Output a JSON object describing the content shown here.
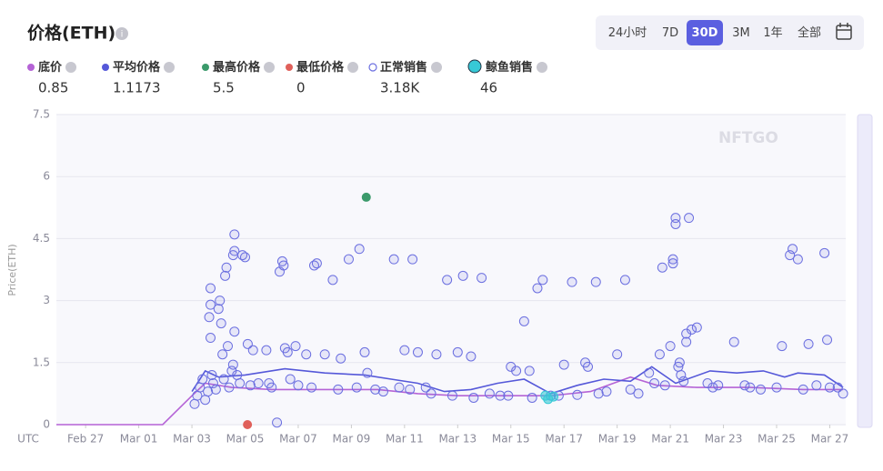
{
  "header": {
    "title": "价格(ETH)",
    "range_buttons": [
      "24小时",
      "7D",
      "30D",
      "3M",
      "1年",
      "全部"
    ],
    "active_range": "30D"
  },
  "chart_data": {
    "type": "scatter",
    "y_label": "Price(ETH)",
    "x_label": "UTC",
    "watermark": "NFTGO",
    "xlim": [
      -1.1,
      28.6
    ],
    "ylim": [
      0,
      7.5
    ],
    "yticks": [
      0,
      1.5,
      3,
      4.5,
      6,
      7.5
    ],
    "grid": true,
    "xticks": [
      {
        "value": 0,
        "label": "Feb 27"
      },
      {
        "value": 2,
        "label": "Mar 01"
      },
      {
        "value": 4,
        "label": "Mar 03"
      },
      {
        "value": 6,
        "label": "Mar 05"
      },
      {
        "value": 8,
        "label": "Mar 07"
      },
      {
        "value": 10,
        "label": "Mar 09"
      },
      {
        "value": 12,
        "label": "Mar 11"
      },
      {
        "value": 14,
        "label": "Mar 13"
      },
      {
        "value": 16,
        "label": "Mar 15"
      },
      {
        "value": 18,
        "label": "Mar 17"
      },
      {
        "value": 20,
        "label": "Mar 19"
      },
      {
        "value": 22,
        "label": "Mar 21"
      },
      {
        "value": 24,
        "label": "Mar 23"
      },
      {
        "value": 26,
        "label": "Mar 25"
      },
      {
        "value": 28,
        "label": "Mar 27"
      }
    ],
    "summary": [
      "0.85",
      "1.1173",
      "5.5",
      "0",
      "3.18K",
      "46"
    ],
    "series": [
      {
        "name": "底价",
        "type": "line",
        "color": "#b563d6",
        "x": [
          -1.1,
          2.9,
          4.0,
          4.5,
          5.5,
          7,
          9,
          11,
          12.5,
          14,
          16,
          17.5,
          19,
          20.5,
          21.5,
          23,
          25,
          27,
          28.5
        ],
        "values": [
          0,
          0,
          0.7,
          1.0,
          0.9,
          0.85,
          0.85,
          0.85,
          0.75,
          0.7,
          0.7,
          0.7,
          0.8,
          1.15,
          0.95,
          0.9,
          0.9,
          0.85,
          0.85
        ]
      },
      {
        "name": "平均价格",
        "type": "line",
        "color": "#5558d9",
        "x": [
          4.0,
          4.5,
          5.0,
          6,
          7.5,
          9,
          10.5,
          11.5,
          12.5,
          13.5,
          14.5,
          15.5,
          16.5,
          17.5,
          18.5,
          19.5,
          20.5,
          21.3,
          22.2,
          23.5,
          24.5,
          25.5,
          26.3,
          26.8,
          27.8,
          28.5
        ],
        "values": [
          0.8,
          1.3,
          1.15,
          1.2,
          1.35,
          1.25,
          1.2,
          1.1,
          1.0,
          0.8,
          0.85,
          1.0,
          1.1,
          0.75,
          0.95,
          1.1,
          1.05,
          1.4,
          1.0,
          1.3,
          1.25,
          1.3,
          1.15,
          1.25,
          1.2,
          0.9
        ]
      },
      {
        "name": "最高价格",
        "type": "point",
        "color": "#3b9a6b",
        "x": [
          10.56
        ],
        "values": [
          5.5
        ]
      },
      {
        "name": "最低价格",
        "type": "point",
        "color": "#e0605a",
        "x": [
          6.09
        ],
        "values": [
          0
        ]
      },
      {
        "name": "正常销售",
        "type": "scatter",
        "color": "#6b6fe0",
        "x": [
          4.1,
          4.2,
          4.3,
          4.4,
          4.5,
          4.6,
          4.7,
          4.7,
          4.65,
          4.7,
          4.75,
          4.8,
          4.9,
          5.0,
          5.05,
          5.1,
          5.15,
          5.2,
          5.3,
          5.25,
          5.35,
          5.4,
          5.5,
          5.55,
          5.6,
          5.6,
          5.55,
          5.6,
          5.7,
          5.8,
          5.9,
          6.0,
          6.1,
          6.3,
          6.5,
          6.8,
          7.0,
          7.2,
          7.3,
          7.4,
          7.45,
          7.5,
          7.6,
          7.7,
          7.9,
          8.0,
          8.3,
          8.6,
          8.7,
          9.0,
          9.3,
          9.6,
          9.9,
          10.3,
          10.5,
          10.6,
          10.9,
          11.6,
          11.8,
          12.0,
          12.3,
          12.5,
          12.8,
          13.2,
          13.6,
          14.0,
          14.2,
          14.5,
          14.9,
          15.2,
          15.6,
          16.0,
          16.2,
          16.5,
          16.7,
          17.0,
          17.2,
          17.5,
          18.0,
          18.3,
          18.8,
          18.9,
          19.2,
          19.6,
          20.0,
          20.3,
          20.8,
          21.2,
          21.4,
          21.6,
          21.7,
          22.0,
          22.1,
          22.1,
          22.2,
          22.2,
          22.4,
          22.5,
          22.6,
          22.6,
          22.7,
          22.8,
          23.0,
          23.4,
          23.8,
          24.4,
          25.0,
          25.4,
          26.2,
          26.5,
          26.6,
          26.8,
          27.2,
          27.5,
          27.8,
          27.9,
          28.3,
          28.5,
          6.2,
          6.9,
          8.5,
          9.5,
          10.2,
          11.2,
          12.2,
          13.0,
          13.8,
          14.6,
          15.9,
          16.8,
          17.8,
          18.5,
          19.3,
          20.5,
          21.8,
          22.3,
          22.35,
          23.6,
          24.8,
          26.0,
          27.0,
          28.0
        ],
        "values": [
          0.5,
          0.7,
          0.9,
          1.1,
          0.6,
          0.8,
          3.3,
          2.9,
          2.6,
          2.1,
          1.2,
          1.0,
          0.85,
          2.8,
          3.0,
          2.45,
          1.7,
          1.1,
          3.8,
          3.6,
          1.9,
          0.9,
          1.3,
          1.45,
          4.6,
          4.2,
          4.1,
          2.25,
          1.2,
          1.0,
          4.1,
          4.05,
          1.95,
          1.8,
          1.0,
          1.8,
          0.9,
          0.05,
          3.7,
          3.95,
          3.85,
          1.85,
          1.75,
          1.1,
          1.9,
          0.95,
          1.7,
          3.85,
          3.9,
          1.7,
          3.5,
          1.6,
          4.0,
          4.25,
          1.75,
          1.25,
          0.85,
          4.0,
          0.9,
          1.8,
          4.0,
          1.75,
          0.9,
          1.7,
          3.5,
          1.75,
          3.6,
          1.65,
          3.55,
          0.75,
          0.7,
          1.4,
          1.3,
          2.5,
          1.3,
          3.3,
          3.5,
          0.7,
          1.45,
          3.45,
          1.5,
          1.4,
          3.45,
          0.8,
          1.7,
          3.5,
          0.75,
          1.25,
          1.0,
          1.7,
          3.8,
          1.9,
          4.0,
          3.9,
          4.85,
          5.0,
          1.2,
          1.05,
          2.0,
          2.2,
          5.0,
          2.3,
          2.35,
          1.0,
          0.95,
          2.0,
          0.9,
          0.85,
          1.9,
          4.1,
          4.25,
          4.0,
          1.95,
          0.95,
          4.15,
          2.05,
          0.9,
          0.75,
          0.95,
          1.0,
          0.9,
          0.85,
          0.9,
          0.8,
          0.85,
          0.75,
          0.7,
          0.65,
          0.7,
          0.65,
          0.7,
          0.72,
          0.75,
          0.85,
          0.95,
          1.4,
          1.5,
          0.9,
          0.95,
          0.9,
          0.85,
          0.9
        ]
      },
      {
        "name": "鲸鱼销售",
        "type": "scatter",
        "color": "#37c9d6",
        "x": [
          17.3,
          17.4,
          17.6
        ],
        "values": [
          0.7,
          0.62,
          0.68
        ]
      }
    ]
  }
}
